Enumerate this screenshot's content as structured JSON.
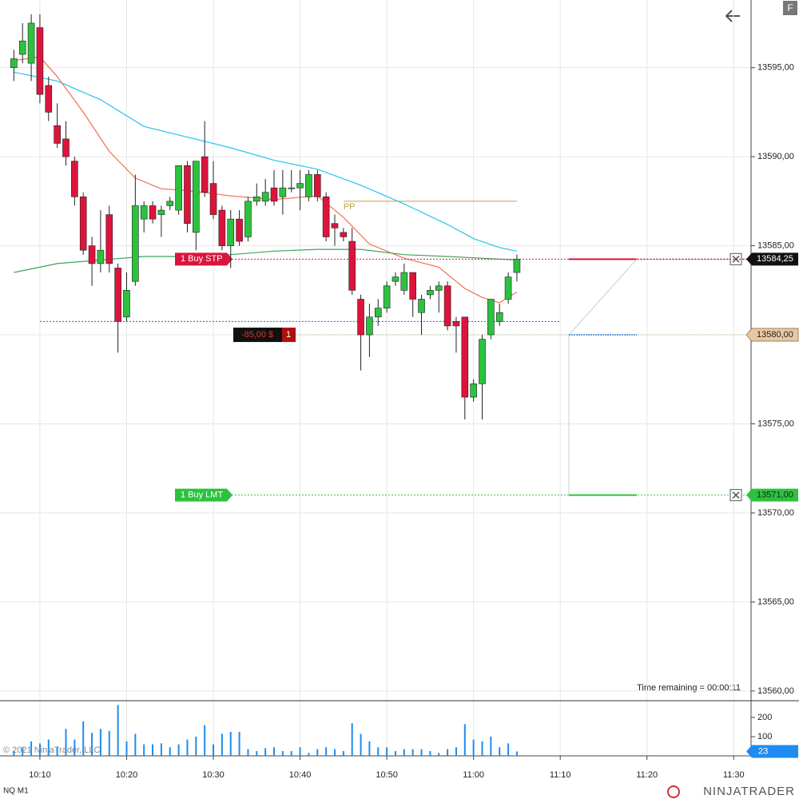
{
  "chart_data": {
    "type": "candlestick",
    "x": [
      607,
      608,
      609,
      610,
      611,
      612,
      613,
      614,
      615,
      616,
      617,
      618,
      619,
      620,
      621,
      622,
      623,
      624,
      625,
      626,
      627,
      628,
      629,
      630,
      631,
      632,
      633,
      634,
      635,
      636,
      637,
      638,
      639,
      640,
      641,
      642,
      643,
      644,
      645,
      646,
      647,
      648,
      649,
      650,
      651,
      652,
      653,
      654,
      655,
      656,
      657,
      658,
      659,
      660,
      661,
      662,
      663,
      664,
      665
    ],
    "open": [
      13595.0,
      13595.75,
      13595.25,
      13597.25,
      13594.0,
      13591.75,
      13591.0,
      13589.75,
      13587.75,
      13585.0,
      13584.0,
      13586.75,
      13583.75,
      13581.0,
      13583.0,
      13586.5,
      13587.25,
      13586.75,
      13587.25,
      13587.0,
      13589.5,
      13585.75,
      13590.0,
      13588.5,
      13587.0,
      13585.0,
      13586.5,
      13585.5,
      13587.5,
      13587.5,
      13588.25,
      13587.75,
      13588.25,
      13588.25,
      13587.75,
      13589.0,
      13587.75,
      13586.25,
      13585.75,
      13585.25,
      13582.0,
      13580.0,
      13581.0,
      13581.5,
      13583.0,
      13582.5,
      13583.5,
      13581.25,
      13582.25,
      13582.5,
      13582.75,
      13580.75,
      13581.0,
      13576.5,
      13577.25,
      13580.0,
      13580.75,
      13582.0,
      13583.5
    ],
    "high": [
      13596.0,
      13597.5,
      13598.0,
      13598.0,
      13594.5,
      13593.0,
      13592.0,
      13590.0,
      13588.0,
      13585.5,
      13587.0,
      13587.25,
      13584.0,
      13583.5,
      13589.0,
      13587.5,
      13587.5,
      13587.25,
      13587.75,
      13589.5,
      13589.75,
      13589.75,
      13592.0,
      13589.75,
      13587.25,
      13587.0,
      13587.0,
      13587.75,
      13588.5,
      13588.75,
      13589.25,
      13589.25,
      13589.25,
      13589.25,
      13589.25,
      13589.25,
      13588.0,
      13586.75,
      13586.0,
      13586.0,
      13582.25,
      13581.75,
      13582.0,
      13583.0,
      13583.5,
      13584.0,
      13583.5,
      13582.25,
      13582.75,
      13583.0,
      13583.0,
      13581.0,
      13581.0,
      13577.5,
      13580.0,
      13582.0,
      13581.75,
      13583.5,
      13584.5
    ],
    "low": [
      13594.25,
      13595.25,
      13594.25,
      13593.0,
      13592.0,
      13590.5,
      13589.5,
      13587.25,
      13584.5,
      13582.75,
      13583.5,
      13583.5,
      13579.0,
      13580.75,
      13582.75,
      13585.75,
      13586.25,
      13585.5,
      13587.0,
      13586.75,
      13585.75,
      13584.75,
      13587.75,
      13586.5,
      13584.75,
      13583.75,
      13585.0,
      13585.25,
      13587.25,
      13587.25,
      13587.25,
      13586.75,
      13588.0,
      13587.0,
      13587.5,
      13587.5,
      13585.25,
      13585.0,
      13585.25,
      13582.25,
      13578.0,
      13578.75,
      13580.5,
      13581.25,
      13582.75,
      13582.25,
      13581.0,
      13580.0,
      13582.0,
      13581.25,
      13580.25,
      13579.0,
      13575.25,
      13576.25,
      13575.25,
      13579.75,
      13580.5,
      13581.75,
      13583.0
    ],
    "close": [
      13595.5,
      13596.5,
      13597.5,
      13593.5,
      13592.5,
      13590.75,
      13590.0,
      13587.75,
      13584.75,
      13584.0,
      13584.75,
      13584.0,
      13580.75,
      13582.5,
      13587.25,
      13587.25,
      13586.5,
      13587.0,
      13587.5,
      13589.5,
      13586.25,
      13589.75,
      13588.0,
      13586.75,
      13585.0,
      13586.5,
      13585.25,
      13587.5,
      13587.75,
      13588.0,
      13587.5,
      13588.25,
      13588.25,
      13588.5,
      13589.0,
      13587.75,
      13585.5,
      13586.0,
      13585.5,
      13582.5,
      13580.0,
      13581.0,
      13581.5,
      13582.75,
      13583.25,
      13583.5,
      13582.0,
      13582.0,
      13582.5,
      13582.75,
      13580.5,
      13580.5,
      13576.5,
      13577.25,
      13579.75,
      13582.0,
      13581.25,
      13583.25,
      13584.25
    ],
    "up_color": "#2cc23e",
    "down_color": "#dc143c",
    "xlim": [
      605.4,
      692.0
    ],
    "ylim": [
      13559.5,
      13598.8
    ],
    "xticks": [
      {
        "value": 610,
        "label": "10:10"
      },
      {
        "value": 620,
        "label": "10:20"
      },
      {
        "value": 630,
        "label": "10:30"
      },
      {
        "value": 640,
        "label": "10:40"
      },
      {
        "value": 650,
        "label": "10:50"
      },
      {
        "value": 660,
        "label": "11:00"
      },
      {
        "value": 670,
        "label": "11:10"
      },
      {
        "value": 680,
        "label": "11:20"
      },
      {
        "value": 690,
        "label": "11:30"
      }
    ],
    "yticks": [
      {
        "value": 13560,
        "label": "13560,00"
      },
      {
        "value": 13565,
        "label": "13565,00"
      },
      {
        "value": 13570,
        "label": "13570,00"
      },
      {
        "value": 13575,
        "label": "13575,00"
      },
      {
        "value": 13580,
        "label": "13580,00"
      },
      {
        "value": 13585,
        "label": "13585,00"
      },
      {
        "value": 13590,
        "label": "13590,00"
      },
      {
        "value": 13595,
        "label": "13595,00"
      }
    ],
    "grid": true,
    "lines": [
      {
        "color": "#25c4ec",
        "x": [
          607,
          612,
          617,
          622,
          627,
          632,
          637,
          642,
          647,
          652,
          657,
          660,
          663,
          665
        ],
        "values": [
          13594.75,
          13594.25,
          13593.2,
          13591.7,
          13591.1,
          13590.5,
          13589.8,
          13589.3,
          13588.4,
          13587.35,
          13586.2,
          13585.4,
          13584.9,
          13584.7
        ]
      },
      {
        "color": "#f0704f",
        "x": [
          607,
          610,
          612,
          615,
          618,
          621,
          624,
          627,
          632,
          637,
          642,
          645,
          648,
          652,
          656,
          659,
          661,
          663,
          665
        ],
        "values": [
          13595.4,
          13595.6,
          13594.5,
          13592.5,
          13590.3,
          13588.8,
          13588.2,
          13588.1,
          13587.8,
          13587.6,
          13587.8,
          13586.6,
          13585.1,
          13584.3,
          13583.8,
          13582.6,
          13582.1,
          13581.8,
          13582.4
        ]
      },
      {
        "color": "#3da45e",
        "x": [
          607,
          612,
          617,
          622,
          627,
          632,
          637,
          642,
          647,
          652,
          657,
          661,
          665
        ],
        "values": [
          13583.5,
          13584.0,
          13584.2,
          13584.4,
          13584.4,
          13584.5,
          13584.7,
          13584.8,
          13584.8,
          13584.5,
          13584.4,
          13584.3,
          13584.2
        ]
      }
    ],
    "pivot": {
      "label": "PP",
      "value": 13587.5,
      "color": "#c8a040",
      "x": [
        645,
        665
      ]
    },
    "entry_line": {
      "value": 13580.75,
      "color": "#1f5fb0",
      "x": [
        610,
        670
      ]
    },
    "orders": [
      {
        "label": "1  Buy STP",
        "price": 13584.25,
        "color": "#dc143c"
      },
      {
        "label": "1  Buy LMT",
        "price": 13571.0,
        "price_label": "13571,00",
        "color": "#2cc23e"
      }
    ],
    "position": {
      "pnl_label": "-85,00 $",
      "quantity": 1,
      "price": 13580.0,
      "price_label": "13580,00"
    },
    "last_price": {
      "value": 13584.25,
      "label": "13584,25"
    },
    "volume": {
      "color": "#1e8cf0",
      "ylim": [
        0,
        283
      ],
      "yticks": [
        100,
        200
      ],
      "values": [
        25,
        45,
        75,
        65,
        85,
        45,
        140,
        85,
        180,
        120,
        140,
        130,
        265,
        75,
        115,
        60,
        60,
        65,
        45,
        60,
        85,
        100,
        160,
        60,
        115,
        125,
        125,
        35,
        25,
        40,
        45,
        25,
        25,
        45,
        15,
        35,
        45,
        35,
        25,
        170,
        115,
        75,
        45,
        45,
        25,
        35,
        35,
        35,
        25,
        15,
        35,
        45,
        165,
        85,
        75,
        100,
        45,
        65,
        23
      ]
    },
    "time_remaining": "Time remaining = 00:00:11",
    "copyright": "© 2021 NinjaTrader, LLC",
    "instrument": "NQ M1",
    "logo": "NINJATRADER",
    "button": "F"
  }
}
